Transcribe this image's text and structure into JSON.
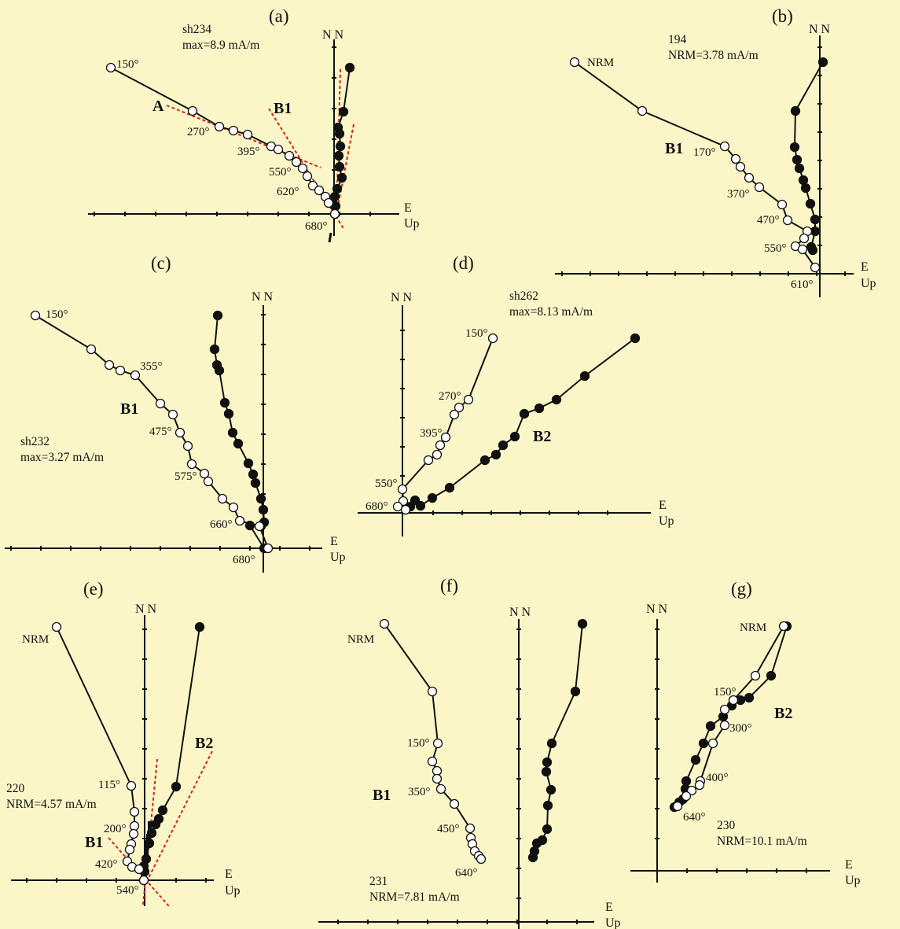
{
  "colors": {
    "background": "#fbf6c7",
    "ink": "#111111",
    "fit_line": "#d4231d"
  },
  "axis_labels": {
    "north": "N N",
    "east": "E",
    "up": "Up"
  },
  "panels": [
    {
      "letter": "(a)",
      "info": [
        "sh234",
        "max=8.9 mA/m"
      ],
      "components": [
        "A",
        "B1"
      ],
      "steps": [
        "150°",
        "270°",
        "395°",
        "550°",
        "620°",
        "680°"
      ]
    },
    {
      "letter": "(b)",
      "info": [
        "194",
        "NRM=3.78 mA/m"
      ],
      "components": [
        "B1"
      ],
      "steps": [
        "NRM",
        "170°",
        "370°",
        "470°",
        "550°",
        "610°"
      ]
    },
    {
      "letter": "(c)",
      "info": [
        "sh232",
        "max=3.27 mA/m"
      ],
      "components": [
        "B1"
      ],
      "steps": [
        "150°",
        "355°",
        "475°",
        "575°",
        "660°",
        "680°"
      ]
    },
    {
      "letter": "(d)",
      "info": [
        "sh262",
        "max=8.13 mA/m"
      ],
      "components": [
        "B2"
      ],
      "steps": [
        "150°",
        "270°",
        "395°",
        "550°",
        "680°"
      ]
    },
    {
      "letter": "(e)",
      "info": [
        "220",
        "NRM=4.57 mA/m"
      ],
      "components": [
        "B2",
        "B1"
      ],
      "steps": [
        "NRM",
        "115°",
        "200°",
        "420°",
        "540°"
      ]
    },
    {
      "letter": "(f)",
      "info": [
        "231",
        "NRM=7.81 mA/m"
      ],
      "components": [
        "B1"
      ],
      "steps": [
        "NRM",
        "150°",
        "350°",
        "450°",
        "640°"
      ]
    },
    {
      "letter": "(g)",
      "info": [
        "230",
        "NRM=10.1 mA/m"
      ],
      "components": [
        "B2"
      ],
      "steps": [
        "NRM",
        "150°",
        "300°",
        "400°",
        "640°"
      ]
    }
  ]
}
